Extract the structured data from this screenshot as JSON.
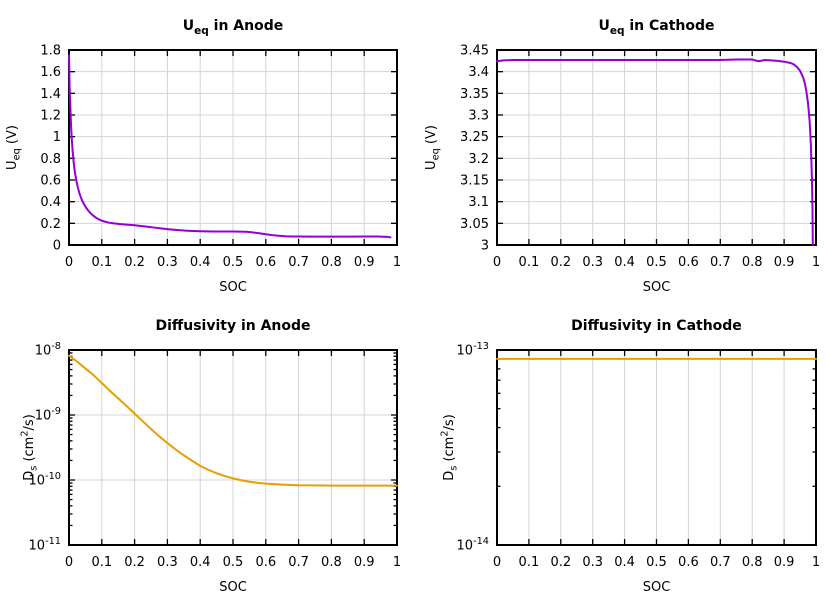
{
  "figure": {
    "background": "#ffffff",
    "text_color": "#000000",
    "axis_color": "#000000",
    "grid_color": "#d4d4d4"
  },
  "chart_data": [
    {
      "id": "ueq-anode",
      "type": "line",
      "title": "U_[eq] in Anode",
      "xlabel": "SOC",
      "ylabel": "U_[eq] (V)",
      "yscale": "linear",
      "xlim": [
        0,
        1
      ],
      "ylim": [
        0,
        1.8
      ],
      "grid": true,
      "legend": "none",
      "line_color": "#9400d3",
      "xticks": [
        {
          "v": 0,
          "label": "0"
        },
        {
          "v": 0.1,
          "label": "0.1"
        },
        {
          "v": 0.2,
          "label": "0.2"
        },
        {
          "v": 0.3,
          "label": "0.3"
        },
        {
          "v": 0.4,
          "label": "0.4"
        },
        {
          "v": 0.5,
          "label": "0.5"
        },
        {
          "v": 0.6,
          "label": "0.6"
        },
        {
          "v": 0.7,
          "label": "0.7"
        },
        {
          "v": 0.8,
          "label": "0.8"
        },
        {
          "v": 0.9,
          "label": "0.9"
        },
        {
          "v": 1,
          "label": "1"
        }
      ],
      "yticks": [
        {
          "v": 0,
          "label": "0"
        },
        {
          "v": 0.2,
          "label": "0.2"
        },
        {
          "v": 0.4,
          "label": "0.4"
        },
        {
          "v": 0.6,
          "label": "0.6"
        },
        {
          "v": 0.8,
          "label": "0.8"
        },
        {
          "v": 1,
          "label": "1"
        },
        {
          "v": 1.2,
          "label": "1.2"
        },
        {
          "v": 1.4,
          "label": "1.4"
        },
        {
          "v": 1.6,
          "label": "1.6"
        },
        {
          "v": 1.8,
          "label": "1.8"
        }
      ],
      "points": [
        [
          0,
          1.75
        ],
        [
          0.002,
          1.45
        ],
        [
          0.004,
          1.28
        ],
        [
          0.006,
          1.12
        ],
        [
          0.008,
          1.0
        ],
        [
          0.011,
          0.87
        ],
        [
          0.014,
          0.77
        ],
        [
          0.018,
          0.67
        ],
        [
          0.022,
          0.6
        ],
        [
          0.027,
          0.53
        ],
        [
          0.032,
          0.475
        ],
        [
          0.038,
          0.425
        ],
        [
          0.045,
          0.38
        ],
        [
          0.052,
          0.345
        ],
        [
          0.06,
          0.312
        ],
        [
          0.07,
          0.281
        ],
        [
          0.08,
          0.257
        ],
        [
          0.09,
          0.238
        ],
        [
          0.1,
          0.224
        ],
        [
          0.12,
          0.207
        ],
        [
          0.14,
          0.198
        ],
        [
          0.16,
          0.192
        ],
        [
          0.18,
          0.187
        ],
        [
          0.2,
          0.182
        ],
        [
          0.22,
          0.175
        ],
        [
          0.24,
          0.168
        ],
        [
          0.26,
          0.161
        ],
        [
          0.28,
          0.154
        ],
        [
          0.3,
          0.147
        ],
        [
          0.32,
          0.141
        ],
        [
          0.34,
          0.136
        ],
        [
          0.36,
          0.132
        ],
        [
          0.38,
          0.129
        ],
        [
          0.4,
          0.127
        ],
        [
          0.42,
          0.126
        ],
        [
          0.44,
          0.125
        ],
        [
          0.46,
          0.125
        ],
        [
          0.48,
          0.125
        ],
        [
          0.5,
          0.125
        ],
        [
          0.52,
          0.124
        ],
        [
          0.54,
          0.122
        ],
        [
          0.56,
          0.116
        ],
        [
          0.58,
          0.108
        ],
        [
          0.6,
          0.099
        ],
        [
          0.62,
          0.091
        ],
        [
          0.64,
          0.085
        ],
        [
          0.66,
          0.081
        ],
        [
          0.68,
          0.079
        ],
        [
          0.7,
          0.078
        ],
        [
          0.74,
          0.077
        ],
        [
          0.78,
          0.077
        ],
        [
          0.82,
          0.077
        ],
        [
          0.86,
          0.077
        ],
        [
          0.9,
          0.078
        ],
        [
          0.94,
          0.078
        ],
        [
          0.97,
          0.075
        ],
        [
          0.98,
          0.071
        ]
      ]
    },
    {
      "id": "ueq-cathode",
      "type": "line",
      "title": "U_[eq] in Cathode",
      "xlabel": "SOC",
      "ylabel": "U_[eq] (V)",
      "yscale": "linear",
      "xlim": [
        0,
        1
      ],
      "ylim": [
        3,
        3.45
      ],
      "grid": true,
      "legend": "none",
      "line_color": "#9400d3",
      "xticks": [
        {
          "v": 0,
          "label": "0"
        },
        {
          "v": 0.1,
          "label": "0.1"
        },
        {
          "v": 0.2,
          "label": "0.2"
        },
        {
          "v": 0.3,
          "label": "0.3"
        },
        {
          "v": 0.4,
          "label": "0.4"
        },
        {
          "v": 0.5,
          "label": "0.5"
        },
        {
          "v": 0.6,
          "label": "0.6"
        },
        {
          "v": 0.7,
          "label": "0.7"
        },
        {
          "v": 0.8,
          "label": "0.8"
        },
        {
          "v": 0.9,
          "label": "0.9"
        },
        {
          "v": 1,
          "label": "1"
        }
      ],
      "yticks": [
        {
          "v": 3,
          "label": "3"
        },
        {
          "v": 3.05,
          "label": "3.05"
        },
        {
          "v": 3.1,
          "label": "3.1"
        },
        {
          "v": 3.15,
          "label": "3.15"
        },
        {
          "v": 3.2,
          "label": "3.2"
        },
        {
          "v": 3.25,
          "label": "3.25"
        },
        {
          "v": 3.3,
          "label": "3.3"
        },
        {
          "v": 3.35,
          "label": "3.35"
        },
        {
          "v": 3.4,
          "label": "3.4"
        },
        {
          "v": 3.45,
          "label": "3.45"
        }
      ],
      "points": [
        [
          0,
          3.424
        ],
        [
          0.02,
          3.426
        ],
        [
          0.05,
          3.427
        ],
        [
          0.1,
          3.427
        ],
        [
          0.15,
          3.427
        ],
        [
          0.2,
          3.427
        ],
        [
          0.25,
          3.427
        ],
        [
          0.3,
          3.427
        ],
        [
          0.35,
          3.427
        ],
        [
          0.4,
          3.427
        ],
        [
          0.45,
          3.427
        ],
        [
          0.5,
          3.427
        ],
        [
          0.55,
          3.427
        ],
        [
          0.6,
          3.427
        ],
        [
          0.65,
          3.427
        ],
        [
          0.7,
          3.427
        ],
        [
          0.75,
          3.428
        ],
        [
          0.8,
          3.428
        ],
        [
          0.82,
          3.424
        ],
        [
          0.84,
          3.427
        ],
        [
          0.86,
          3.426
        ],
        [
          0.88,
          3.425
        ],
        [
          0.9,
          3.423
        ],
        [
          0.92,
          3.42
        ],
        [
          0.93,
          3.417
        ],
        [
          0.94,
          3.411
        ],
        [
          0.95,
          3.402
        ],
        [
          0.96,
          3.386
        ],
        [
          0.965,
          3.373
        ],
        [
          0.97,
          3.354
        ],
        [
          0.975,
          3.327
        ],
        [
          0.98,
          3.286
        ],
        [
          0.984,
          3.23
        ],
        [
          0.987,
          3.16
        ],
        [
          0.989,
          3.085
        ],
        [
          0.99,
          3.0
        ]
      ]
    },
    {
      "id": "diffusivity-anode",
      "type": "line",
      "title": "Diffusivity in Anode",
      "xlabel": "SOC",
      "ylabel": "D_[s] (cm^[2]/s)",
      "yscale": "log",
      "xlim": [
        0,
        1
      ],
      "ylim": [
        1e-11,
        1e-08
      ],
      "grid": true,
      "legend": "none",
      "line_color": "#e69f00",
      "xticks": [
        {
          "v": 0,
          "label": "0"
        },
        {
          "v": 0.1,
          "label": "0.1"
        },
        {
          "v": 0.2,
          "label": "0.2"
        },
        {
          "v": 0.3,
          "label": "0.3"
        },
        {
          "v": 0.4,
          "label": "0.4"
        },
        {
          "v": 0.5,
          "label": "0.5"
        },
        {
          "v": 0.6,
          "label": "0.6"
        },
        {
          "v": 0.7,
          "label": "0.7"
        },
        {
          "v": 0.8,
          "label": "0.8"
        },
        {
          "v": 0.9,
          "label": "0.9"
        },
        {
          "v": 1,
          "label": "1"
        }
      ],
      "yticks": [
        {
          "v": 1e-11,
          "label": "10^[-11]"
        },
        {
          "v": 1e-10,
          "label": "10^[-10]"
        },
        {
          "v": 1e-09,
          "label": "10^[-9]"
        },
        {
          "v": 1e-08,
          "label": "10^[-8]"
        }
      ],
      "points": [
        [
          0,
          8.2e-09
        ],
        [
          0.025,
          6.6e-09
        ],
        [
          0.05,
          5.2e-09
        ],
        [
          0.075,
          4.1e-09
        ],
        [
          0.1,
          3.1e-09
        ],
        [
          0.125,
          2.35e-09
        ],
        [
          0.15,
          1.8e-09
        ],
        [
          0.175,
          1.38e-09
        ],
        [
          0.2,
          1.05e-09
        ],
        [
          0.225,
          8e-10
        ],
        [
          0.25,
          6.1e-10
        ],
        [
          0.275,
          4.7e-10
        ],
        [
          0.3,
          3.7e-10
        ],
        [
          0.325,
          2.95e-10
        ],
        [
          0.35,
          2.4e-10
        ],
        [
          0.375,
          1.98e-10
        ],
        [
          0.4,
          1.65e-10
        ],
        [
          0.425,
          1.43e-10
        ],
        [
          0.45,
          1.27e-10
        ],
        [
          0.475,
          1.15e-10
        ],
        [
          0.5,
          1.06e-10
        ],
        [
          0.525,
          9.9e-11
        ],
        [
          0.55,
          9.4e-11
        ],
        [
          0.575,
          9.05e-11
        ],
        [
          0.6,
          8.8e-11
        ],
        [
          0.65,
          8.5e-11
        ],
        [
          0.7,
          8.3e-11
        ],
        [
          0.75,
          8.25e-11
        ],
        [
          0.8,
          8.2e-11
        ],
        [
          0.85,
          8.2e-11
        ],
        [
          0.9,
          8.2e-11
        ],
        [
          0.95,
          8.2e-11
        ],
        [
          1,
          8.2e-11
        ]
      ]
    },
    {
      "id": "diffusivity-cathode",
      "type": "line",
      "title": "Diffusivity in Cathode",
      "xlabel": "SOC",
      "ylabel": "D_[s] (cm^[2]/s)",
      "yscale": "log",
      "xlim": [
        0,
        1
      ],
      "ylim": [
        1e-14,
        1e-13
      ],
      "grid": true,
      "legend": "none",
      "line_color": "#e69f00",
      "xticks": [
        {
          "v": 0,
          "label": "0"
        },
        {
          "v": 0.1,
          "label": "0.1"
        },
        {
          "v": 0.2,
          "label": "0.2"
        },
        {
          "v": 0.3,
          "label": "0.3"
        },
        {
          "v": 0.4,
          "label": "0.4"
        },
        {
          "v": 0.5,
          "label": "0.5"
        },
        {
          "v": 0.6,
          "label": "0.6"
        },
        {
          "v": 0.7,
          "label": "0.7"
        },
        {
          "v": 0.8,
          "label": "0.8"
        },
        {
          "v": 0.9,
          "label": "0.9"
        },
        {
          "v": 1,
          "label": "1"
        }
      ],
      "yticks": [
        {
          "v": 1e-14,
          "label": "10^[-14]"
        },
        {
          "v": 1e-13,
          "label": "10^[-13]"
        }
      ],
      "points": [
        [
          0,
          9e-14
        ],
        [
          0.2,
          9e-14
        ],
        [
          0.4,
          9e-14
        ],
        [
          0.6,
          9e-14
        ],
        [
          0.8,
          9e-14
        ],
        [
          1,
          9e-14
        ]
      ]
    }
  ]
}
